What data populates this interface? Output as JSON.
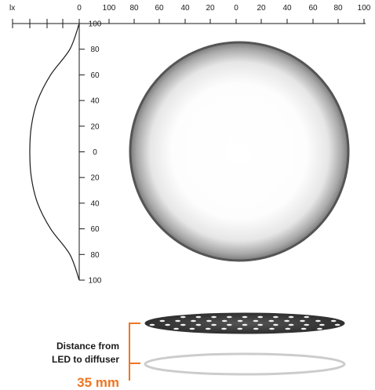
{
  "light_distribution": {
    "unit": "lx",
    "top_axis_labels": [
      "0",
      "100",
      "80",
      "60",
      "40",
      "20",
      "0",
      "20",
      "40",
      "60",
      "80",
      "100"
    ],
    "vertical_axis_labels": [
      "100",
      "80",
      "60",
      "40",
      "20",
      "0",
      "20",
      "40",
      "60",
      "80",
      "100"
    ],
    "curve_profile": [
      {
        "position": 100,
        "lux": 0
      },
      {
        "position": 80,
        "lux": 18
      },
      {
        "position": 60,
        "lux": 55
      },
      {
        "position": 40,
        "lux": 80
      },
      {
        "position": 20,
        "lux": 92
      },
      {
        "position": 0,
        "lux": 95
      },
      {
        "position": -20,
        "lux": 92
      },
      {
        "position": -40,
        "lux": 80
      },
      {
        "position": -60,
        "lux": 55
      },
      {
        "position": -80,
        "lux": 18
      },
      {
        "position": -100,
        "lux": 0
      }
    ]
  },
  "caption": {
    "line1": "Distance from",
    "line2": "LED to diffuser",
    "distance": "35 mm"
  },
  "colors": {
    "accent": "#ee7623",
    "axis": "#1a1a1a",
    "disc_edge": "#555555",
    "led_plate": "#444444",
    "diffuser_outline": "#cccccc"
  }
}
